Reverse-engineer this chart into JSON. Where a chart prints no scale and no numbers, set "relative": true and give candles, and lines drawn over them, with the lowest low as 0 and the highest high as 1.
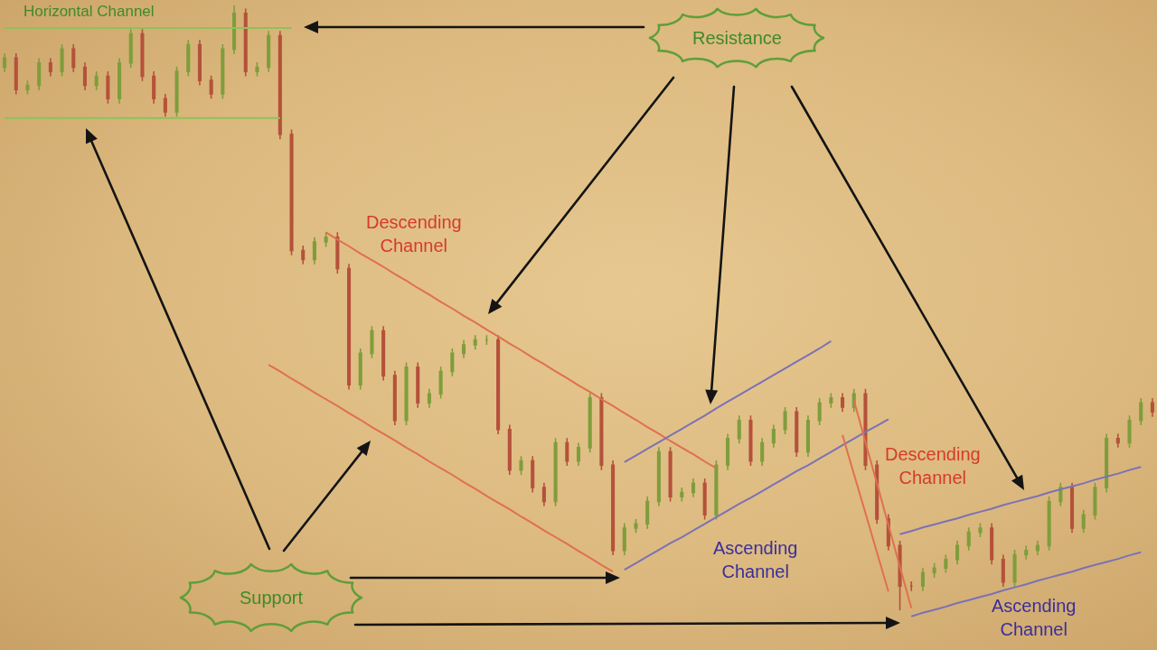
{
  "chart_data": {
    "type": "candlestick",
    "relative": true,
    "annotations": [
      "Horizontal Channel",
      "Resistance",
      "Descending Channel",
      "Descending Channel",
      "Ascending Channel",
      "Support",
      "Ascending Channel"
    ],
    "categories": [
      null,
      null,
      null,
      null,
      null,
      null,
      null,
      null,
      null,
      null,
      null,
      null,
      null,
      null,
      null,
      null,
      null,
      null,
      null,
      null,
      null,
      null,
      null,
      null,
      null,
      null,
      null,
      null,
      null,
      null,
      null,
      null,
      null,
      null,
      null,
      null,
      null,
      null,
      null,
      null,
      null,
      null,
      null,
      null,
      null,
      null,
      null,
      null,
      null,
      null,
      null,
      null,
      null,
      null,
      null,
      null,
      null,
      null,
      null,
      null,
      null,
      null,
      null,
      null,
      null,
      null,
      null,
      null,
      null,
      null,
      null,
      null,
      null,
      null,
      null,
      null,
      null,
      null,
      null,
      null,
      null,
      null,
      null,
      null,
      null,
      null,
      null,
      null,
      null,
      null,
      null,
      null,
      null,
      null,
      null,
      null,
      null,
      null,
      null,
      null,
      null
    ],
    "ohlc": [
      [
        0.898,
        0.921,
        0.89,
        0.913
      ],
      [
        0.913,
        0.921,
        0.853,
        0.861
      ],
      [
        0.861,
        0.876,
        0.853,
        0.868
      ],
      [
        0.868,
        0.913,
        0.86,
        0.905
      ],
      [
        0.905,
        0.913,
        0.883,
        0.891
      ],
      [
        0.891,
        0.936,
        0.883,
        0.928
      ],
      [
        0.928,
        0.936,
        0.89,
        0.898
      ],
      [
        0.898,
        0.906,
        0.86,
        0.868
      ],
      [
        0.868,
        0.891,
        0.86,
        0.883
      ],
      [
        0.883,
        0.891,
        0.838,
        0.846
      ],
      [
        0.846,
        0.913,
        0.838,
        0.905
      ],
      [
        0.905,
        0.961,
        0.897,
        0.953
      ],
      [
        0.953,
        0.961,
        0.875,
        0.883
      ],
      [
        0.883,
        0.891,
        0.838,
        0.846
      ],
      [
        0.846,
        0.854,
        0.816,
        0.824
      ],
      [
        0.824,
        0.899,
        0.816,
        0.891
      ],
      [
        0.891,
        0.943,
        0.883,
        0.935
      ],
      [
        0.935,
        0.943,
        0.868,
        0.876
      ],
      [
        0.876,
        0.884,
        0.846,
        0.854
      ],
      [
        0.854,
        0.936,
        0.846,
        0.928
      ],
      [
        0.928,
        1,
        0.92,
        0.987
      ],
      [
        0.987,
        0.995,
        0.883,
        0.891
      ],
      [
        0.891,
        0.906,
        0.883,
        0.898
      ],
      [
        0.898,
        0.958,
        0.89,
        0.95
      ],
      [
        0.95,
        0.958,
        0.779,
        0.787
      ],
      [
        0.787,
        0.795,
        0.587,
        0.595
      ],
      [
        0.595,
        0.603,
        0.572,
        0.58
      ],
      [
        0.58,
        0.617,
        0.572,
        0.609
      ],
      [
        0.609,
        0.625,
        0.601,
        0.617
      ],
      [
        0.617,
        0.625,
        0.557,
        0.565
      ],
      [
        0.565,
        0.573,
        0.365,
        0.373
      ],
      [
        0.373,
        0.433,
        0.365,
        0.425
      ],
      [
        0.425,
        0.47,
        0.417,
        0.462
      ],
      [
        0.462,
        0.47,
        0.38,
        0.388
      ],
      [
        0.388,
        0.396,
        0.306,
        0.314
      ],
      [
        0.314,
        0.41,
        0.306,
        0.402
      ],
      [
        0.402,
        0.41,
        0.335,
        0.343
      ],
      [
        0.343,
        0.366,
        0.335,
        0.358
      ],
      [
        0.358,
        0.403,
        0.35,
        0.395
      ],
      [
        0.395,
        0.433,
        0.387,
        0.425
      ],
      [
        0.425,
        0.447,
        0.417,
        0.439
      ],
      [
        0.439,
        0.455,
        0.431,
        0.447
      ],
      [
        0.447,
        0.455,
        0.439,
        0.447
      ],
      [
        0.447,
        0.455,
        0.291,
        0.299
      ],
      [
        0.299,
        0.307,
        0.224,
        0.232
      ],
      [
        0.232,
        0.255,
        0.224,
        0.247
      ],
      [
        0.247,
        0.255,
        0.195,
        0.203
      ],
      [
        0.203,
        0.211,
        0.172,
        0.18
      ],
      [
        0.18,
        0.285,
        0.172,
        0.277
      ],
      [
        0.277,
        0.285,
        0.239,
        0.247
      ],
      [
        0.247,
        0.277,
        0.239,
        0.269
      ],
      [
        0.269,
        0.359,
        0.261,
        0.351
      ],
      [
        0.351,
        0.359,
        0.232,
        0.24
      ],
      [
        0.24,
        0.248,
        0.091,
        0.099
      ],
      [
        0.099,
        0.144,
        0.091,
        0.136
      ],
      [
        0.136,
        0.151,
        0.128,
        0.143
      ],
      [
        0.143,
        0.188,
        0.135,
        0.18
      ],
      [
        0.18,
        0.27,
        0.172,
        0.262
      ],
      [
        0.262,
        0.27,
        0.18,
        0.188
      ],
      [
        0.188,
        0.203,
        0.18,
        0.195
      ],
      [
        0.195,
        0.218,
        0.187,
        0.21
      ],
      [
        0.21,
        0.218,
        0.15,
        0.158
      ],
      [
        0.158,
        0.248,
        0.15,
        0.24
      ],
      [
        0.24,
        0.292,
        0.232,
        0.284
      ],
      [
        0.284,
        0.322,
        0.276,
        0.314
      ],
      [
        0.314,
        0.322,
        0.239,
        0.247
      ],
      [
        0.247,
        0.285,
        0.239,
        0.277
      ],
      [
        0.277,
        0.307,
        0.269,
        0.299
      ],
      [
        0.299,
        0.336,
        0.291,
        0.328
      ],
      [
        0.328,
        0.336,
        0.254,
        0.262
      ],
      [
        0.262,
        0.322,
        0.254,
        0.314
      ],
      [
        0.314,
        0.351,
        0.306,
        0.343
      ],
      [
        0.343,
        0.359,
        0.335,
        0.351
      ],
      [
        0.351,
        0.359,
        0.328,
        0.336
      ],
      [
        0.336,
        0.366,
        0.328,
        0.358
      ],
      [
        0.358,
        0.366,
        0.232,
        0.24
      ],
      [
        0.24,
        0.248,
        0.143,
        0.151
      ],
      [
        0.151,
        0.159,
        0.099,
        0.107
      ],
      [
        0.107,
        0.115,
        0,
        0.04
      ],
      [
        0.04,
        0.048,
        0.032,
        0.04
      ],
      [
        0.04,
        0.07,
        0.032,
        0.062
      ],
      [
        0.062,
        0.078,
        0.054,
        0.07
      ],
      [
        0.07,
        0.092,
        0.062,
        0.084
      ],
      [
        0.084,
        0.115,
        0.076,
        0.107
      ],
      [
        0.107,
        0.137,
        0.099,
        0.129
      ],
      [
        0.129,
        0.144,
        0.121,
        0.136
      ],
      [
        0.136,
        0.144,
        0.076,
        0.084
      ],
      [
        0.084,
        0.092,
        0.039,
        0.047
      ],
      [
        0.047,
        0.1,
        0.039,
        0.092
      ],
      [
        0.092,
        0.107,
        0.084,
        0.099
      ],
      [
        0.099,
        0.115,
        0.091,
        0.107
      ],
      [
        0.107,
        0.188,
        0.099,
        0.18
      ],
      [
        0.18,
        0.211,
        0.172,
        0.203
      ],
      [
        0.203,
        0.211,
        0.128,
        0.136
      ],
      [
        0.136,
        0.166,
        0.128,
        0.158
      ],
      [
        0.158,
        0.211,
        0.15,
        0.203
      ],
      [
        0.203,
        0.292,
        0.195,
        0.284
      ],
      [
        0.284,
        0.292,
        0.269,
        0.277
      ],
      [
        0.277,
        0.322,
        0.269,
        0.314
      ],
      [
        0.314,
        0.351,
        0.306,
        0.343
      ],
      [
        0.343,
        0.351,
        0.32,
        0.328
      ]
    ],
    "colors": [
      "#7f9d3c",
      "#b5523a",
      "#7f9d3c",
      "#7f9d3c",
      "#b5523a",
      "#7f9d3c",
      "#b5523a",
      "#b5523a",
      "#7f9d3c",
      "#b5523a",
      "#7f9d3c",
      "#7f9d3c",
      "#b5523a",
      "#b5523a",
      "#b5523a",
      "#7f9d3c",
      "#7f9d3c",
      "#b5523a",
      "#b5523a",
      "#7f9d3c",
      "#7f9d3c",
      "#b5523a",
      "#7f9d3c",
      "#7f9d3c",
      "#b5523a",
      "#b5523a",
      "#b5523a",
      "#7f9d3c",
      "#7f9d3c",
      "#b5523a",
      "#b5523a",
      "#7f9d3c",
      "#7f9d3c",
      "#b5523a",
      "#b5523a",
      "#7f9d3c",
      "#b5523a",
      "#7f9d3c",
      "#7f9d3c",
      "#7f9d3c",
      "#7f9d3c",
      "#7f9d3c",
      "#7f9d3c",
      "#b5523a",
      "#b5523a",
      "#7f9d3c",
      "#b5523a",
      "#b5523a",
      "#7f9d3c",
      "#b5523a",
      "#7f9d3c",
      "#7f9d3c",
      "#b5523a",
      "#b5523a",
      "#7f9d3c",
      "#7f9d3c",
      "#7f9d3c",
      "#7f9d3c",
      "#b5523a",
      "#7f9d3c",
      "#7f9d3c",
      "#b5523a",
      "#7f9d3c",
      "#7f9d3c",
      "#7f9d3c",
      "#b5523a",
      "#7f9d3c",
      "#7f9d3c",
      "#7f9d3c",
      "#b5523a",
      "#7f9d3c",
      "#7f9d3c",
      "#7f9d3c",
      "#b5523a",
      "#7f9d3c",
      "#b5523a",
      "#b5523a",
      "#b5523a",
      "#b5523a",
      "#b5523a",
      "#7f9d3c",
      "#7f9d3c",
      "#7f9d3c",
      "#7f9d3c",
      "#7f9d3c",
      "#7f9d3c",
      "#b5523a",
      "#b5523a",
      "#7f9d3c",
      "#7f9d3c",
      "#7f9d3c",
      "#7f9d3c",
      "#7f9d3c",
      "#b5523a",
      "#7f9d3c",
      "#7f9d3c",
      "#7f9d3c",
      "#b5523a",
      "#7f9d3c",
      "#7f9d3c",
      "#b5523a"
    ],
    "series": [
      {
        "type": "line",
        "color": "#8fc15a",
        "values": [
          0.963,
          0.963,
          0.963,
          0.963,
          0.963,
          0.963,
          0.963,
          0.963,
          0.963,
          0.963,
          0.963,
          0.963,
          0.963,
          0.963,
          0.963,
          0.963,
          0.963,
          0.963,
          0.963,
          0.963,
          0.963,
          0.963,
          0.963,
          0.963,
          0.963,
          0.963,
          null,
          null,
          null,
          null,
          null,
          null,
          null,
          null,
          null,
          null,
          null,
          null,
          null,
          null,
          null,
          null,
          null,
          null,
          null,
          null,
          null,
          null,
          null,
          null,
          null,
          null,
          null,
          null,
          null,
          null,
          null,
          null,
          null,
          null,
          null,
          null,
          null,
          null,
          null,
          null,
          null,
          null,
          null,
          null,
          null,
          null,
          null,
          null,
          null,
          null,
          null,
          null,
          null,
          null,
          null,
          null,
          null,
          null,
          null,
          null,
          null,
          null,
          null,
          null,
          null,
          null,
          null,
          null,
          null,
          null,
          null,
          null,
          null,
          null,
          null
        ]
      },
      {
        "type": "line",
        "color": "#8fc15a",
        "values": [
          0.814,
          0.814,
          0.814,
          0.814,
          0.814,
          0.814,
          0.814,
          0.814,
          0.814,
          0.814,
          0.814,
          0.814,
          0.814,
          0.814,
          0.814,
          0.814,
          0.814,
          0.814,
          0.814,
          0.814,
          0.814,
          0.814,
          0.814,
          0.814,
          0.814,
          null,
          null,
          null,
          null,
          null,
          null,
          null,
          null,
          null,
          null,
          null,
          null,
          null,
          null,
          null,
          null,
          null,
          null,
          null,
          null,
          null,
          null,
          null,
          null,
          null,
          null,
          null,
          null,
          null,
          null,
          null,
          null,
          null,
          null,
          null,
          null,
          null,
          null,
          null,
          null,
          null,
          null,
          null,
          null,
          null,
          null,
          null,
          null,
          null,
          null,
          null,
          null,
          null,
          null,
          null,
          null,
          null,
          null,
          null,
          null,
          null,
          null,
          null,
          null,
          null,
          null,
          null,
          null,
          null,
          null,
          null,
          null,
          null,
          null,
          null,
          null
        ]
      },
      {
        "type": "line",
        "color": "#e0704f",
        "values": [
          null,
          null,
          null,
          null,
          null,
          null,
          null,
          null,
          null,
          null,
          null,
          null,
          null,
          null,
          null,
          null,
          null,
          null,
          null,
          null,
          null,
          null,
          null,
          null,
          null,
          null,
          null,
          null,
          0.625,
          0.613,
          0.602,
          0.59,
          0.579,
          0.568,
          0.556,
          0.545,
          0.533,
          0.522,
          0.51,
          0.499,
          0.487,
          0.476,
          0.464,
          0.453,
          0.441,
          0.43,
          0.418,
          0.407,
          0.395,
          0.384,
          0.372,
          0.361,
          0.349,
          0.338,
          0.326,
          0.315,
          0.303,
          0.292,
          0.28,
          0.269,
          0.258,
          0.246,
          0.235,
          null,
          null,
          null,
          null,
          null,
          null,
          null,
          null,
          null,
          null,
          null,
          null,
          null,
          null,
          null,
          null,
          null,
          null,
          null,
          null,
          null,
          null,
          null,
          null,
          null,
          null,
          null,
          null,
          null,
          null,
          null,
          null,
          null,
          null,
          null,
          null,
          null,
          null
        ]
      },
      {
        "type": "line",
        "color": "#e0704f",
        "values": [
          null,
          null,
          null,
          null,
          null,
          null,
          null,
          null,
          null,
          null,
          null,
          null,
          null,
          null,
          null,
          null,
          null,
          null,
          null,
          null,
          null,
          null,
          null,
          0.406,
          0.395,
          0.383,
          0.372,
          0.36,
          0.349,
          0.338,
          0.326,
          0.315,
          0.303,
          0.292,
          0.281,
          0.269,
          0.258,
          0.246,
          0.235,
          0.224,
          0.212,
          0.201,
          0.189,
          0.178,
          0.167,
          0.155,
          0.144,
          0.132,
          0.121,
          0.11,
          0.098,
          0.087,
          0.075,
          0.064,
          null,
          null,
          null,
          null,
          null,
          null,
          null,
          null,
          null,
          null,
          null,
          null,
          null,
          null,
          null,
          null,
          null,
          null,
          null,
          null,
          null,
          null,
          null,
          null,
          null,
          null,
          null,
          null,
          null,
          null,
          null,
          null,
          null,
          null,
          null,
          null,
          null,
          null,
          null,
          null,
          null,
          null,
          null,
          null,
          null,
          null,
          null
        ]
      },
      {
        "type": "line",
        "color": "#7b72b5",
        "values": [
          null,
          null,
          null,
          null,
          null,
          null,
          null,
          null,
          null,
          null,
          null,
          null,
          null,
          null,
          null,
          null,
          null,
          null,
          null,
          null,
          null,
          null,
          null,
          null,
          null,
          null,
          null,
          null,
          null,
          null,
          null,
          null,
          null,
          null,
          null,
          null,
          null,
          null,
          null,
          null,
          null,
          null,
          null,
          null,
          null,
          null,
          null,
          null,
          null,
          null,
          null,
          null,
          null,
          null,
          0.245,
          0.256,
          0.267,
          0.278,
          0.289,
          0.3,
          0.311,
          0.322,
          0.334,
          0.345,
          0.356,
          0.367,
          0.378,
          0.389,
          0.4,
          0.411,
          0.422,
          0.433,
          0.445,
          null,
          null,
          null,
          null,
          null,
          null,
          null,
          null,
          null,
          null,
          null,
          null,
          null,
          null,
          null,
          null,
          null,
          null,
          null,
          null,
          null,
          null,
          null,
          null,
          null,
          null,
          null,
          null
        ]
      },
      {
        "type": "line",
        "color": "#7b72b5",
        "values": [
          null,
          null,
          null,
          null,
          null,
          null,
          null,
          null,
          null,
          null,
          null,
          null,
          null,
          null,
          null,
          null,
          null,
          null,
          null,
          null,
          null,
          null,
          null,
          null,
          null,
          null,
          null,
          null,
          null,
          null,
          null,
          null,
          null,
          null,
          null,
          null,
          null,
          null,
          null,
          null,
          null,
          null,
          null,
          null,
          null,
          null,
          null,
          null,
          null,
          null,
          null,
          null,
          null,
          null,
          0.067,
          0.078,
          0.089,
          0.1,
          0.111,
          0.121,
          0.132,
          0.143,
          0.154,
          0.165,
          0.176,
          0.186,
          0.197,
          0.208,
          0.219,
          0.23,
          0.24,
          0.251,
          0.262,
          0.273,
          0.284,
          0.295,
          0.305,
          0.316,
          null,
          null,
          null,
          null,
          null,
          null,
          null,
          null,
          null,
          null,
          null,
          null,
          null,
          null,
          null,
          null,
          null,
          null,
          null,
          null,
          null,
          null,
          null
        ]
      },
      {
        "type": "line",
        "color": "#e0704f",
        "values": [
          null,
          null,
          null,
          null,
          null,
          null,
          null,
          null,
          null,
          null,
          null,
          null,
          null,
          null,
          null,
          null,
          null,
          null,
          null,
          null,
          null,
          null,
          null,
          null,
          null,
          null,
          null,
          null,
          null,
          null,
          null,
          null,
          null,
          null,
          null,
          null,
          null,
          null,
          null,
          null,
          null,
          null,
          null,
          null,
          null,
          null,
          null,
          null,
          null,
          null,
          null,
          null,
          null,
          null,
          null,
          null,
          null,
          null,
          null,
          null,
          null,
          null,
          null,
          null,
          null,
          null,
          null,
          null,
          null,
          null,
          null,
          null,
          null,
          0.29,
          0.225,
          0.161,
          0.096,
          0.031,
          null,
          null,
          null,
          null,
          null,
          null,
          null,
          null,
          null,
          null,
          null,
          null,
          null,
          null,
          null,
          null,
          null,
          null,
          null,
          null,
          null,
          null,
          null
        ]
      },
      {
        "type": "line",
        "color": "#e0704f",
        "values": [
          null,
          null,
          null,
          null,
          null,
          null,
          null,
          null,
          null,
          null,
          null,
          null,
          null,
          null,
          null,
          null,
          null,
          null,
          null,
          null,
          null,
          null,
          null,
          null,
          null,
          null,
          null,
          null,
          null,
          null,
          null,
          null,
          null,
          null,
          null,
          null,
          null,
          null,
          null,
          null,
          null,
          null,
          null,
          null,
          null,
          null,
          null,
          null,
          null,
          null,
          null,
          null,
          null,
          null,
          null,
          null,
          null,
          null,
          null,
          null,
          null,
          null,
          null,
          null,
          null,
          null,
          null,
          null,
          null,
          null,
          null,
          null,
          null,
          null,
          0.347,
          0.278,
          0.21,
          0.141,
          0.072,
          0.004,
          null,
          null,
          null,
          null,
          null,
          null,
          null,
          null,
          null,
          null,
          null,
          null,
          null,
          null,
          null,
          null,
          null,
          null,
          null,
          null,
          null
        ]
      },
      {
        "type": "line",
        "color": "#7b72b5",
        "values": [
          null,
          null,
          null,
          null,
          null,
          null,
          null,
          null,
          null,
          null,
          null,
          null,
          null,
          null,
          null,
          null,
          null,
          null,
          null,
          null,
          null,
          null,
          null,
          null,
          null,
          null,
          null,
          null,
          null,
          null,
          null,
          null,
          null,
          null,
          null,
          null,
          null,
          null,
          null,
          null,
          null,
          null,
          null,
          null,
          null,
          null,
          null,
          null,
          null,
          null,
          null,
          null,
          null,
          null,
          null,
          null,
          null,
          null,
          null,
          null,
          null,
          null,
          null,
          null,
          null,
          null,
          null,
          null,
          null,
          null,
          null,
          null,
          null,
          null,
          null,
          null,
          null,
          null,
          0.126,
          0.131,
          0.137,
          0.142,
          0.147,
          0.152,
          0.158,
          0.163,
          0.168,
          0.174,
          0.179,
          0.184,
          0.189,
          0.195,
          0.2,
          0.205,
          0.21,
          0.216,
          0.221,
          0.226,
          0.232,
          0.237,
          null
        ]
      },
      {
        "type": "line",
        "color": "#7b72b5",
        "values": [
          null,
          null,
          null,
          null,
          null,
          null,
          null,
          null,
          null,
          null,
          null,
          null,
          null,
          null,
          null,
          null,
          null,
          null,
          null,
          null,
          null,
          null,
          null,
          null,
          null,
          null,
          null,
          null,
          null,
          null,
          null,
          null,
          null,
          null,
          null,
          null,
          null,
          null,
          null,
          null,
          null,
          null,
          null,
          null,
          null,
          null,
          null,
          null,
          null,
          null,
          null,
          null,
          null,
          null,
          null,
          null,
          null,
          null,
          null,
          null,
          null,
          null,
          null,
          null,
          null,
          null,
          null,
          null,
          null,
          null,
          null,
          null,
          null,
          null,
          null,
          null,
          null,
          null,
          null,
          -0.01,
          -0.004,
          0.001,
          0.006,
          0.012,
          0.017,
          0.022,
          0.027,
          0.033,
          0.038,
          0.043,
          0.049,
          0.054,
          0.059,
          0.064,
          0.07,
          0.075,
          0.08,
          0.085,
          0.091,
          0.096,
          null
        ]
      }
    ]
  }
}
